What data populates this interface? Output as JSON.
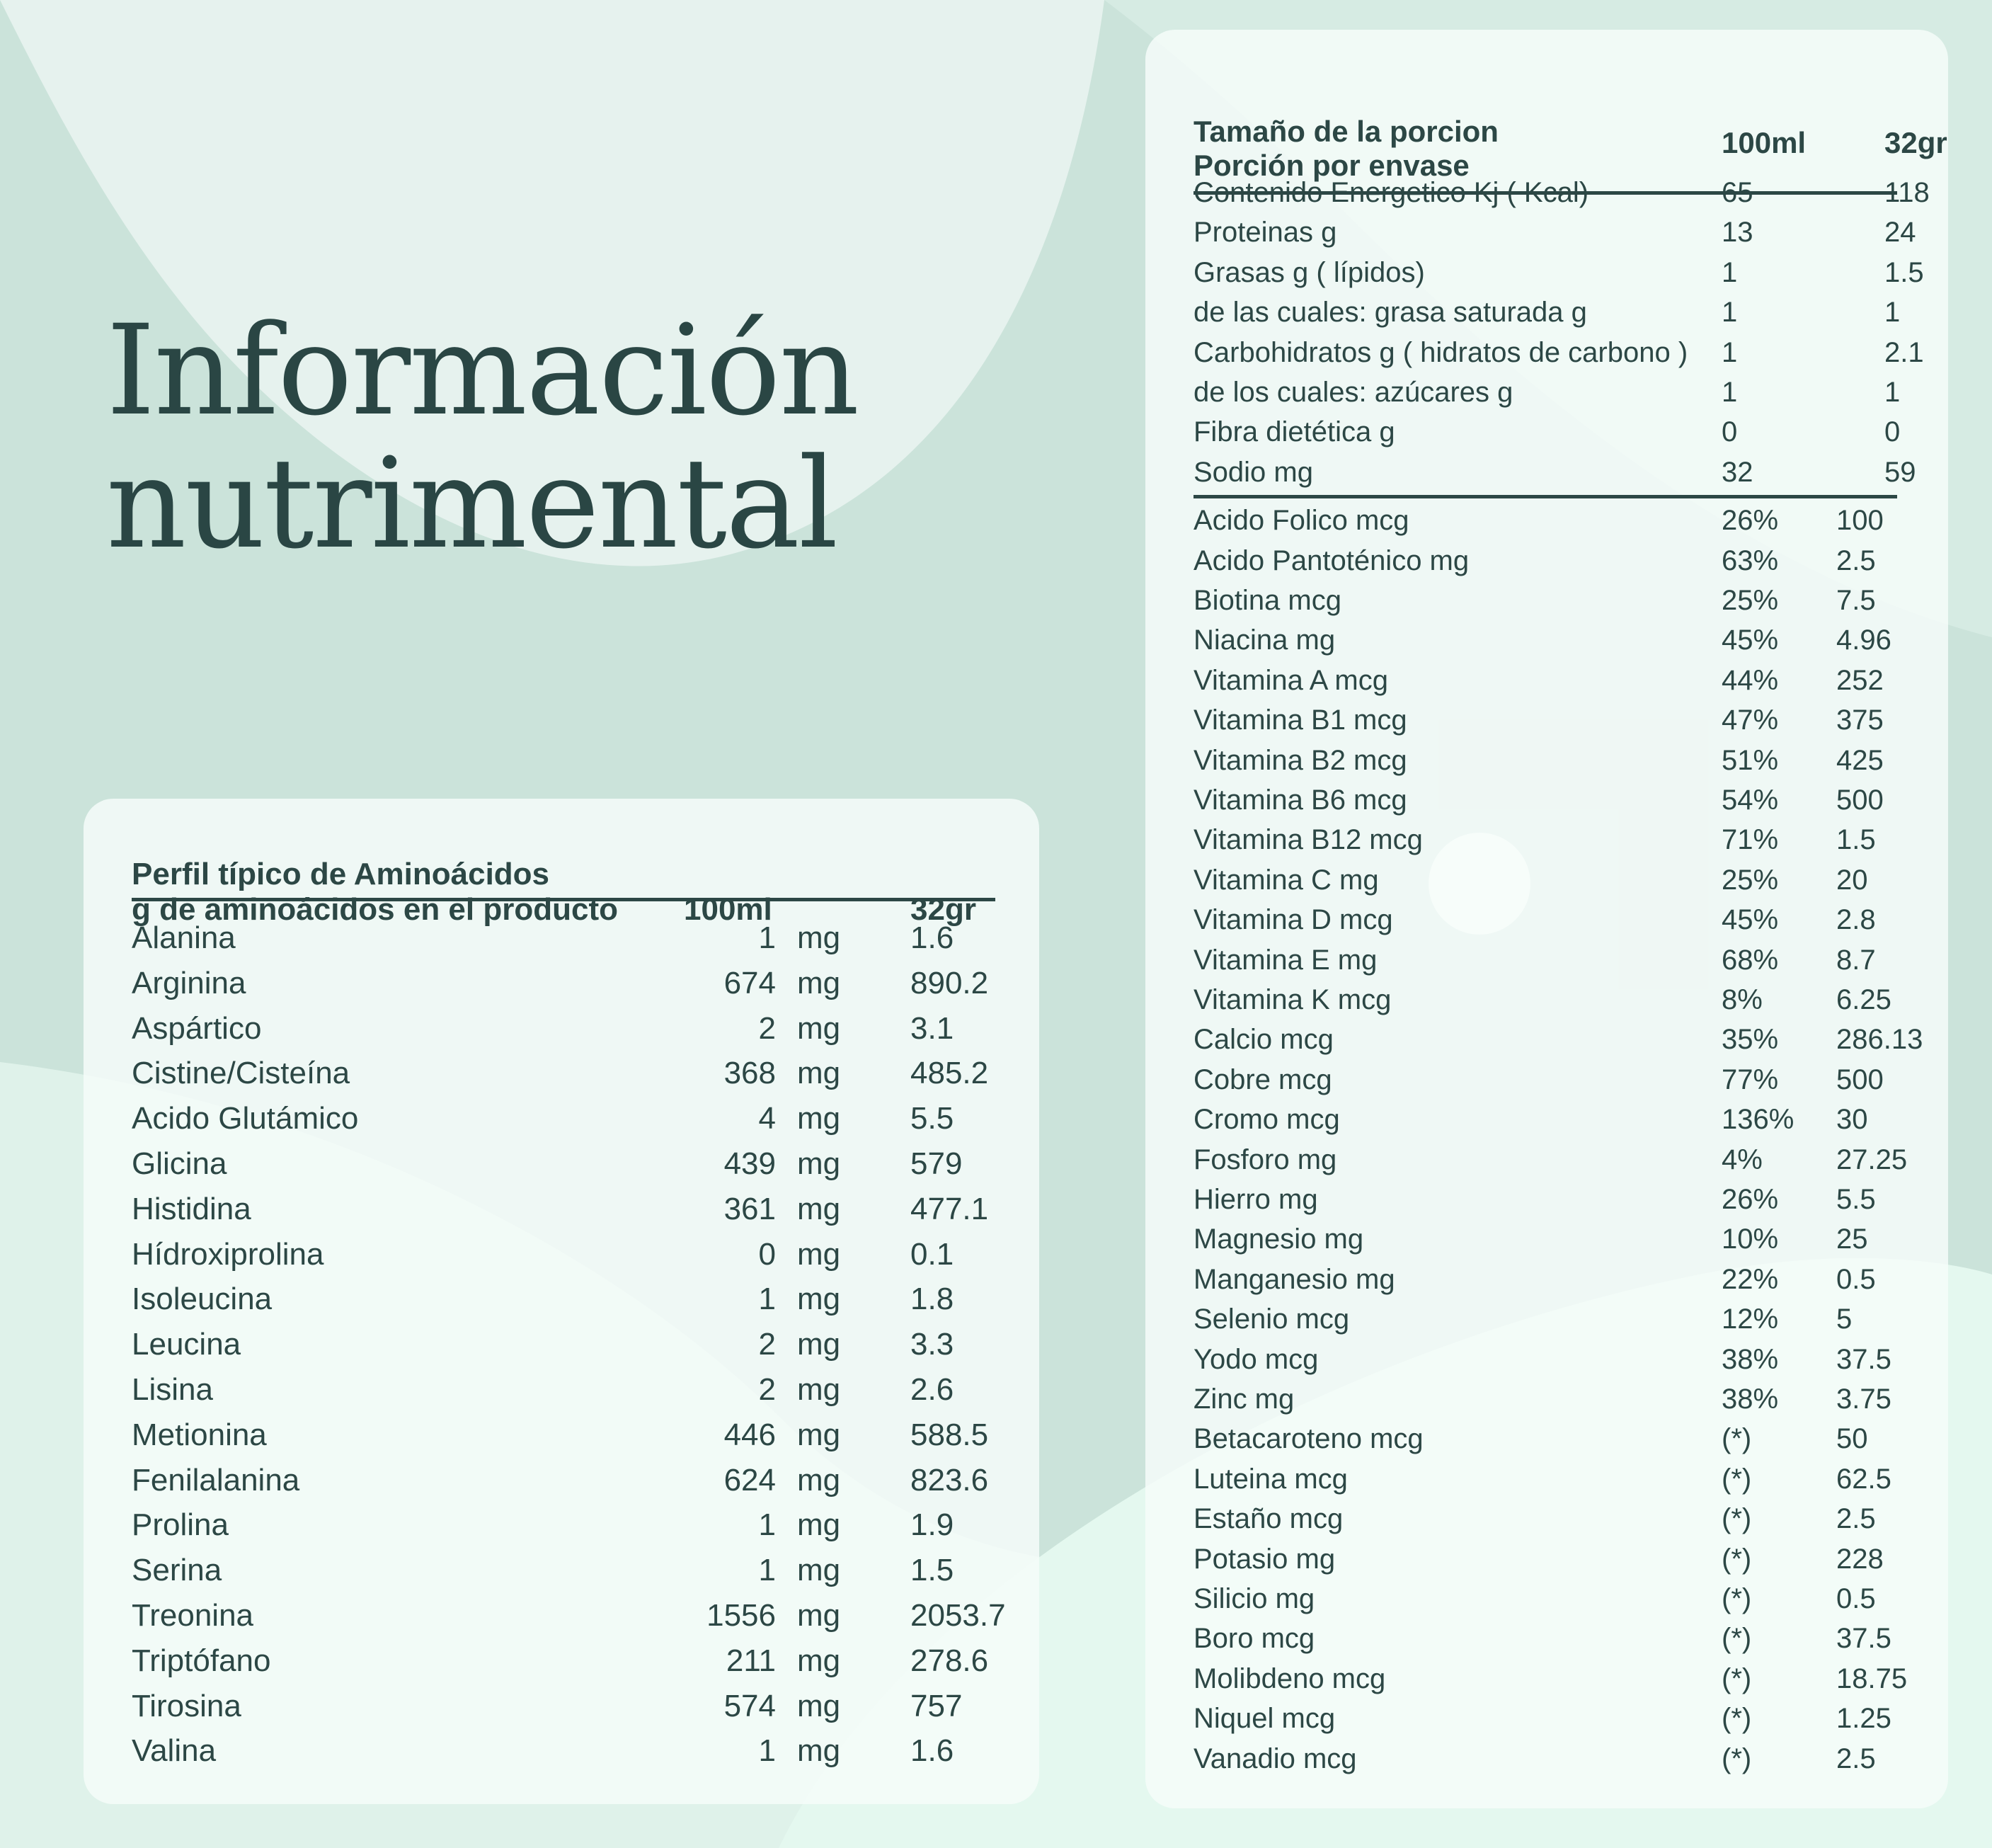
{
  "title": {
    "line1": "Información",
    "line2": "nutrimental"
  },
  "colors": {
    "background": "#cfe6dd",
    "text": "#2c4745",
    "panel": "#f7fcfa"
  },
  "amino": {
    "heading1": "Perfil típico de Aminoácidos",
    "heading2": "g de aminoácidos en el producto",
    "col1": "100ml",
    "col2": "32gr",
    "rows": [
      {
        "name": "Alanina",
        "value": "1",
        "unit": "mg",
        "value32": "1.6"
      },
      {
        "name": "Arginina",
        "value": "674",
        "unit": "mg",
        "value32": "890.2"
      },
      {
        "name": "Aspártico",
        "value": "2",
        "unit": "mg",
        "value32": "3.1"
      },
      {
        "name": "Cistine/Cisteína",
        "value": "368",
        "unit": "mg",
        "value32": "485.2"
      },
      {
        "name": "Acido Glutámico",
        "value": "4",
        "unit": "mg",
        "value32": "5.5"
      },
      {
        "name": "Glicina",
        "value": "439",
        "unit": "mg",
        "value32": "579"
      },
      {
        "name": "Histidina",
        "value": "361",
        "unit": "mg",
        "value32": "477.1"
      },
      {
        "name": "Hídroxiprolina",
        "value": "0",
        "unit": "mg",
        "value32": "0.1"
      },
      {
        "name": "Isoleucina",
        "value": "1",
        "unit": "mg",
        "value32": "1.8"
      },
      {
        "name": "Leucina",
        "value": "2",
        "unit": "mg",
        "value32": "3.3"
      },
      {
        "name": "Lisina",
        "value": "2",
        "unit": "mg",
        "value32": "2.6"
      },
      {
        "name": "Metionina",
        "value": "446",
        "unit": "mg",
        "value32": "588.5"
      },
      {
        "name": "Fenilalanina",
        "value": "624",
        "unit": "mg",
        "value32": "823.6"
      },
      {
        "name": "Prolina",
        "value": "1",
        "unit": "mg",
        "value32": "1.9"
      },
      {
        "name": "Serina",
        "value": "1",
        "unit": "mg",
        "value32": "1.5"
      },
      {
        "name": "Treonina",
        "value": "1556",
        "unit": "mg",
        "value32": "2053.7"
      },
      {
        "name": "Triptófano",
        "value": "211",
        "unit": "mg",
        "value32": "278.6"
      },
      {
        "name": "Tirosina",
        "value": "574",
        "unit": "mg",
        "value32": "757"
      },
      {
        "name": "Valina",
        "value": "1",
        "unit": "mg",
        "value32": "1.6"
      }
    ]
  },
  "nutrition": {
    "heading1": "Tamaño de la porcion",
    "heading2": "Porción por envase",
    "col1": "100ml",
    "col2": "32gr",
    "macros": [
      {
        "name": "Contenido Energetico Kj ( Kcal)",
        "v1": "65",
        "v2": "118"
      },
      {
        "name": "Proteinas g",
        "v1": "13",
        "v2": "24"
      },
      {
        "name": "Grasas g ( lípidos)",
        "v1": "1",
        "v2": "1.5"
      },
      {
        "name": "de las cuales: grasa saturada g",
        "v1": "1",
        "v2": "1"
      },
      {
        "name": "Carbohidratos g ( hidratos de carbono )",
        "v1": "1",
        "v2": "2.1"
      },
      {
        "name": "de los cuales: azúcares g",
        "v1": "1",
        "v2": "1"
      },
      {
        "name": "Fibra dietética g",
        "v1": "0",
        "v2": "0"
      },
      {
        "name": "Sodio mg",
        "v1": "32",
        "v2": "59"
      }
    ],
    "micros": [
      {
        "name": "Acido Folico mcg",
        "v1": "26%",
        "v2": "100"
      },
      {
        "name": "Acido Pantoténico mg",
        "v1": "63%",
        "v2": "2.5"
      },
      {
        "name": "Biotina mcg",
        "v1": "25%",
        "v2": "7.5"
      },
      {
        "name": "Niacina mg",
        "v1": "45%",
        "v2": "4.96"
      },
      {
        "name": "Vitamina A mcg",
        "v1": "44%",
        "v2": "252"
      },
      {
        "name": "Vitamina B1 mcg",
        "v1": "47%",
        "v2": "375"
      },
      {
        "name": "Vitamina B2 mcg",
        "v1": "51%",
        "v2": "425"
      },
      {
        "name": "Vitamina B6 mcg",
        "v1": "54%",
        "v2": "500"
      },
      {
        "name": "Vitamina B12 mcg",
        "v1": "71%",
        "v2": "1.5"
      },
      {
        "name": "Vitamina C mg",
        "v1": "25%",
        "v2": "20"
      },
      {
        "name": "Vitamina D mcg",
        "v1": "45%",
        "v2": "2.8"
      },
      {
        "name": "Vitamina E mg",
        "v1": "68%",
        "v2": "8.7"
      },
      {
        "name": "Vitamina K mcg",
        "v1": "8%",
        "v2": "6.25"
      },
      {
        "name": "Calcio mcg",
        "v1": "35%",
        "v2": "286.13"
      },
      {
        "name": "Cobre mcg",
        "v1": "77%",
        "v2": "500"
      },
      {
        "name": "Cromo mcg",
        "v1": "136%",
        "v2": "30"
      },
      {
        "name": "Fosforo mg",
        "v1": "4%",
        "v2": "27.25"
      },
      {
        "name": "Hierro mg",
        "v1": "26%",
        "v2": "5.5"
      },
      {
        "name": "Magnesio mg",
        "v1": "10%",
        "v2": "25"
      },
      {
        "name": "Manganesio mg",
        "v1": "22%",
        "v2": "0.5"
      },
      {
        "name": "Selenio mcg",
        "v1": "12%",
        "v2": "5"
      },
      {
        "name": "Yodo mcg",
        "v1": "38%",
        "v2": "37.5"
      },
      {
        "name": "Zinc mg",
        "v1": "38%",
        "v2": "3.75"
      },
      {
        "name": "Betacaroteno mcg",
        "v1": "(*)",
        "v2": "50"
      },
      {
        "name": "Luteina mcg",
        "v1": "(*)",
        "v2": "62.5"
      },
      {
        "name": "Estaño mcg",
        "v1": "(*)",
        "v2": "2.5"
      },
      {
        "name": "Potasio mg",
        "v1": "(*)",
        "v2": "228"
      },
      {
        "name": "Silicio mg",
        "v1": "(*)",
        "v2": "0.5"
      },
      {
        "name": "Boro mcg",
        "v1": "(*)",
        "v2": "37.5"
      },
      {
        "name": "Molibdeno mcg",
        "v1": "(*)",
        "v2": "18.75"
      },
      {
        "name": "Niquel mcg",
        "v1": "(*)",
        "v2": "1.25"
      },
      {
        "name": "Vanadio mcg",
        "v1": "(*)",
        "v2": "2.5"
      }
    ]
  }
}
